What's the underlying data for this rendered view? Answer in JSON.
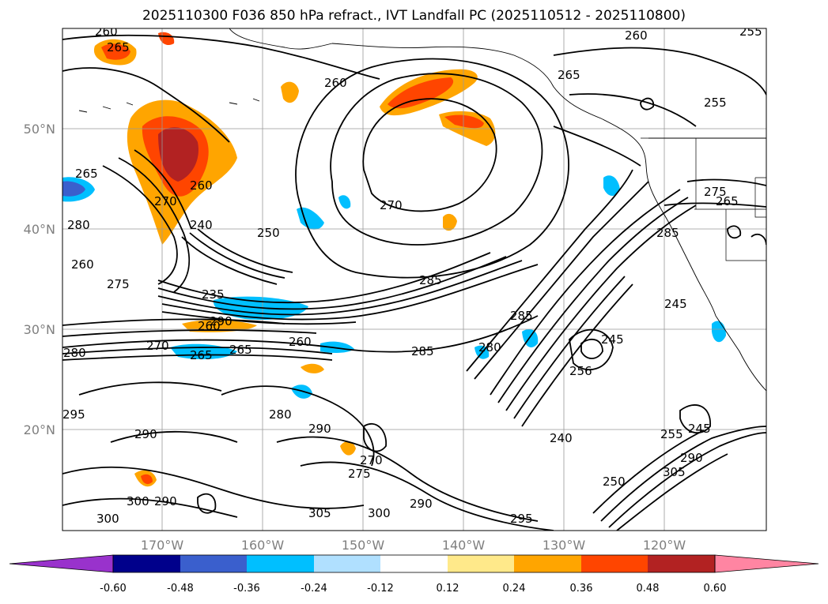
{
  "title": "2025110300 F036 850 hPa refract., IVT Landfall PC (2025110512 - 2025110800)",
  "lat_labels": [
    "50°N",
    "40°N",
    "30°N",
    "20°N"
  ],
  "lon_labels": [
    "170°W",
    "160°W",
    "150°W",
    "140°W",
    "130°W",
    "120°W"
  ],
  "contour_labels": [
    "260",
    "265",
    "255",
    "260",
    "260",
    "265",
    "255",
    "265",
    "275",
    "265",
    "240",
    "260",
    "250",
    "270",
    "285",
    "260",
    "275",
    "235",
    "260",
    "285",
    "290",
    "285",
    "280",
    "270",
    "265",
    "260",
    "285",
    "280",
    "265",
    "245",
    "256",
    "295",
    "280",
    "290",
    "290",
    "270",
    "275",
    "240",
    "255",
    "245",
    "290",
    "300",
    "300",
    "290",
    "305",
    "300",
    "290",
    "295",
    "250",
    "305",
    "280",
    "245",
    "270"
  ],
  "colorbar": {
    "ticks": [
      "-0.60",
      "-0.48",
      "-0.36",
      "-0.24",
      "-0.12",
      "0.12",
      "0.24",
      "0.36",
      "0.48",
      "0.60"
    ],
    "colors": [
      "#9932cc",
      "#00008b",
      "#3a5fcd",
      "#00bfff",
      "#b0e0ff",
      "#ffffff",
      "#ffe98a",
      "#ffa500",
      "#ff4500",
      "#b22222",
      "#ff85a2"
    ]
  },
  "colors": {
    "orange": "#ffa500",
    "red_orange": "#ff4500",
    "dark_red": "#b22222",
    "light_yellow": "#ffe98a",
    "cyan": "#00bfff",
    "light_blue": "#b0e0ff"
  }
}
